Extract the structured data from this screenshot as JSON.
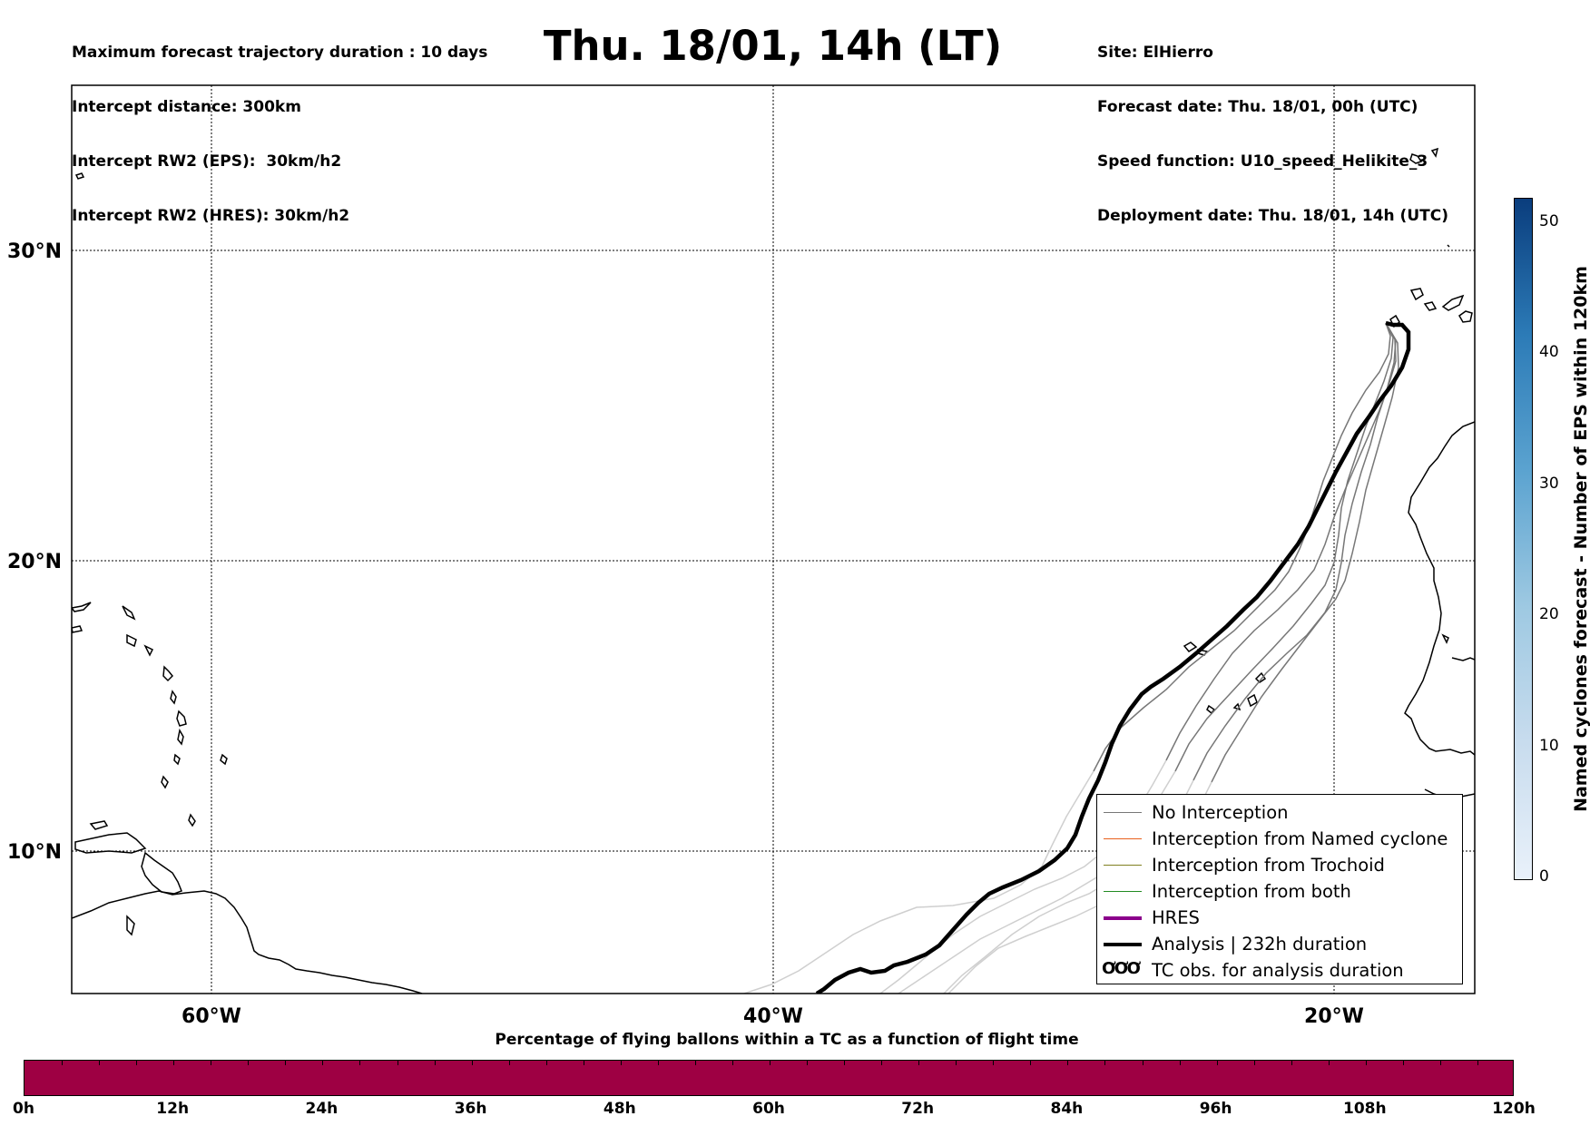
{
  "header": {
    "left_lines": [
      "Maximum forecast trajectory duration : 10 days",
      "Intercept distance: 300km",
      "Intercept RW2 (EPS):  30km/h2",
      "Intercept RW2 (HRES): 30km/h2"
    ],
    "title": "Thu. 18/01, 14h (LT)",
    "right_lines": [
      "Site: ElHierro",
      "Forecast date: Thu. 18/01, 00h (UTC)",
      "Speed function: U10_speed_Helikite_3",
      "Deployment date: Thu. 18/01, 14h (UTC)"
    ]
  },
  "map": {
    "lat_labels": [
      "30°N",
      "20°N",
      "10°N"
    ],
    "lon_labels": [
      "60°W",
      "40°W",
      "20°W"
    ],
    "grid_style": "dotted"
  },
  "legend": {
    "items": [
      {
        "label": "No Interception",
        "color": "#777777"
      },
      {
        "label": "Interception from Named cyclone",
        "color": "#e8601c"
      },
      {
        "label": "Interception from Trochoid",
        "color": "#808020"
      },
      {
        "label": "Interception from both",
        "color": "#228b22"
      },
      {
        "label": "HRES",
        "color": "#8b008b"
      },
      {
        "label": "Analysis | 232h duration",
        "color": "#000000"
      },
      {
        "label": "TC obs. for analysis duration",
        "symbol": "ƠƠƠ"
      }
    ]
  },
  "horizontal_colorbar": {
    "title": "Percentage of flying ballons within a TC as a function of flight time",
    "tick_labels": [
      "0h",
      "12h",
      "24h",
      "36h",
      "48h",
      "60h",
      "72h",
      "84h",
      "96h",
      "108h",
      "120h"
    ],
    "fill_color": "#9e0043"
  },
  "vertical_colorbar": {
    "title": "Named cyclones forecast - Number of EPS within 120km",
    "tick_labels": [
      "0",
      "10",
      "20",
      "30",
      "40",
      "50"
    ]
  }
}
